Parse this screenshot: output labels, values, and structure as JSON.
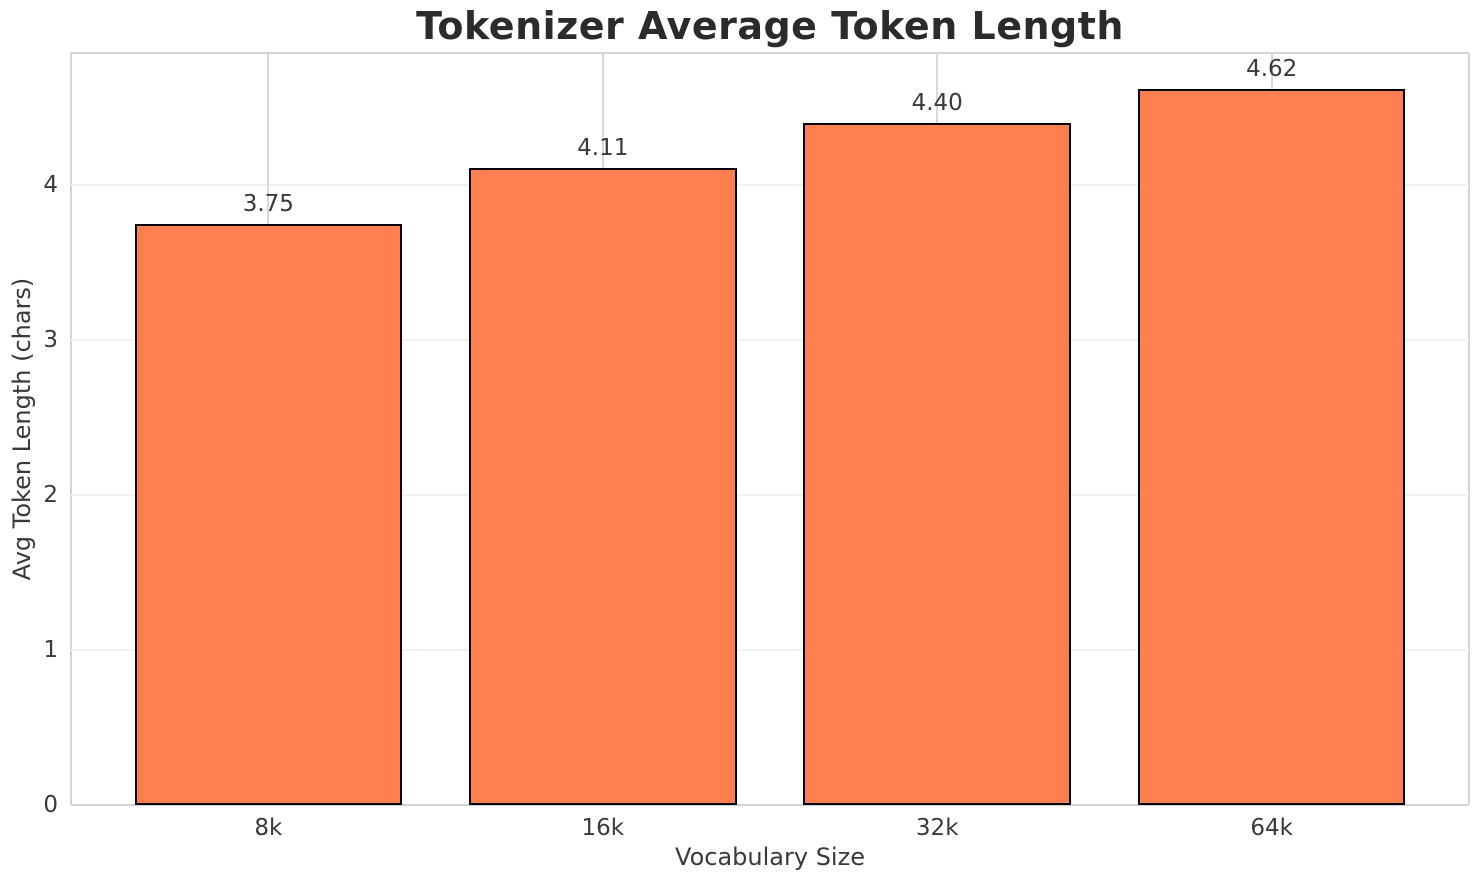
{
  "chart_data": {
    "type": "bar",
    "title": "Tokenizer Average Token Length",
    "xlabel": "Vocabulary Size",
    "ylabel": "Avg Token Length (chars)",
    "categories": [
      "8k",
      "16k",
      "32k",
      "64k"
    ],
    "values": [
      3.75,
      4.11,
      4.4,
      4.62
    ],
    "value_labels": [
      "3.75",
      "4.11",
      "4.40",
      "4.62"
    ],
    "yticks": [
      0,
      1,
      2,
      3,
      4
    ],
    "ylim": [
      0,
      4.85
    ],
    "xlim": [
      -0.59,
      3.59
    ],
    "bar_width": 0.8,
    "grid": true,
    "legend_position": "none",
    "colors": {
      "bar_fill": "#FF7F50",
      "bar_edge": "#000000",
      "x_grid": "#d9d9d9",
      "y_grid": "#f1f1f1",
      "spine": "#d4d4d4",
      "title_text": "#2b2b2b",
      "tick_text": "#3a3a3a",
      "background": "#ffffff"
    }
  }
}
